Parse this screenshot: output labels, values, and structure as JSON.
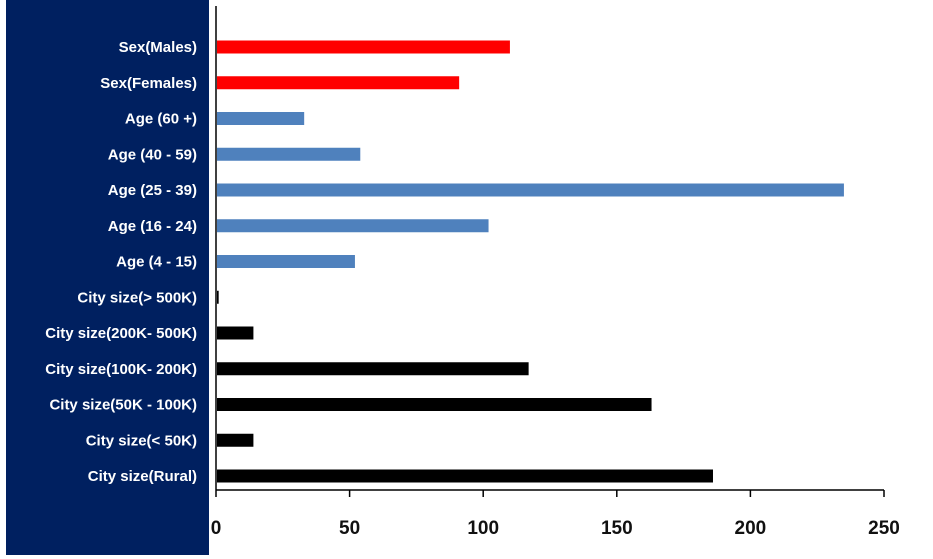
{
  "chart_data": {
    "type": "bar",
    "orientation": "horizontal",
    "title": "",
    "xlabel": "",
    "ylabel": "",
    "xlim": [
      0,
      250
    ],
    "x_ticks": [
      0,
      50,
      100,
      150,
      200,
      250
    ],
    "grid": false,
    "legend": "none",
    "categories": [
      "Sex(Males)",
      "Sex(Females)",
      "Age (60 +)",
      "Age (40 - 59)",
      "Age (25 - 39)",
      "Age (16 - 24)",
      "Age (4 - 15)",
      "City size(> 500K)",
      "City size(200K- 500K)",
      "City size(100K- 200K)",
      "City size(50K - 100K)",
      "City size(< 50K)",
      "City size(Rural)"
    ],
    "values": [
      110,
      91,
      33,
      54,
      235,
      102,
      52,
      1,
      14,
      117,
      163,
      14,
      186
    ],
    "bar_colors": [
      "#ff0000",
      "#ff0000",
      "#4f81bd",
      "#4f81bd",
      "#4f81bd",
      "#4f81bd",
      "#4f81bd",
      "#000000",
      "#000000",
      "#000000",
      "#000000",
      "#000000",
      "#000000"
    ]
  },
  "colors": {
    "label_panel": "#002060",
    "label_text": "#ffffff",
    "axis": "#000000",
    "tick_text": "#111111"
  }
}
